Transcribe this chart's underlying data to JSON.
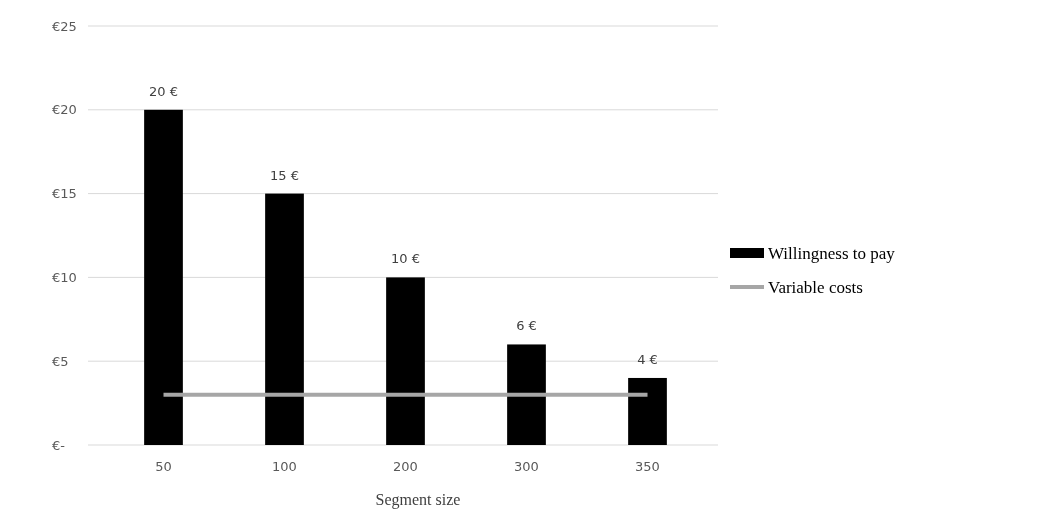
{
  "chart_data": {
    "type": "bar",
    "xlabel": "Segment size",
    "categories": [
      "50",
      "100",
      "200",
      "300",
      "350"
    ],
    "series": [
      {
        "name": "Willingness to pay",
        "color": "#000000",
        "values": [
          20,
          15,
          10,
          6,
          4
        ],
        "value_labels": [
          "20 €",
          "15 €",
          "10 €",
          "6 €",
          "4 €"
        ]
      },
      {
        "name": "Variable costs",
        "type": "line",
        "color": "#a6a6a6",
        "values": [
          3,
          3,
          3,
          3,
          3
        ]
      }
    ],
    "ylim": [
      0,
      25
    ],
    "yticks": [
      {
        "value": 0,
        "label": "€-"
      },
      {
        "value": 5,
        "label": "€5"
      },
      {
        "value": 10,
        "label": "€10"
      },
      {
        "value": 15,
        "label": "€15"
      },
      {
        "value": 20,
        "label": "€20"
      },
      {
        "value": 25,
        "label": "€25"
      }
    ],
    "grid": "y",
    "legend": "right",
    "marker": "none",
    "line_style": "solid"
  }
}
